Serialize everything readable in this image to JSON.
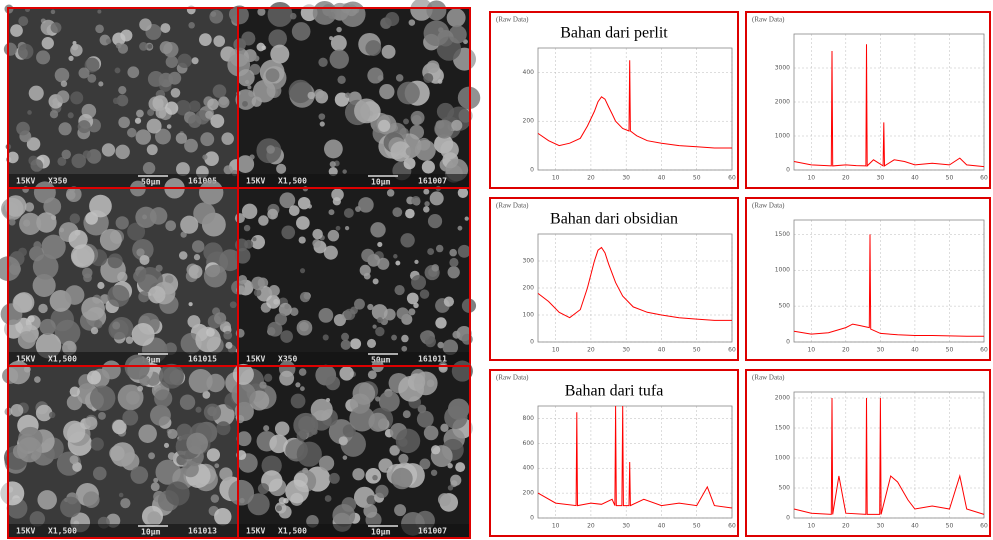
{
  "sem_images": [
    {
      "voltage": "15KV",
      "magnification": "X350",
      "scale": "50µm",
      "id": "161005"
    },
    {
      "voltage": "15KV",
      "magnification": "X1,500",
      "scale": "10µm",
      "id": "161007"
    },
    {
      "voltage": "15KV",
      "magnification": "X1,500",
      "scale": "10µm",
      "id": "161015"
    },
    {
      "voltage": "15KV",
      "magnification": "X350",
      "scale": "50µm",
      "id": "161011"
    },
    {
      "voltage": "15KV",
      "magnification": "X1,500",
      "scale": "10µm",
      "id": "161013"
    },
    {
      "voltage": "15KV",
      "magnification": "X1,500",
      "scale": "10µm",
      "id": "161007"
    }
  ],
  "chart_data": [
    {
      "type": "line",
      "title": "Bahan dari perlit",
      "annotation": "(Raw Data)",
      "color": "#ff0000",
      "grid": true,
      "x": [
        5,
        8,
        11,
        14,
        17,
        19,
        21,
        22,
        23,
        24,
        25,
        26,
        27,
        29,
        30.8,
        31,
        31.2,
        33,
        36,
        40,
        45,
        50,
        55,
        60
      ],
      "values": [
        150,
        120,
        100,
        110,
        130,
        180,
        240,
        280,
        300,
        290,
        260,
        230,
        200,
        170,
        160,
        450,
        160,
        140,
        120,
        110,
        100,
        95,
        90,
        90
      ],
      "xlim": [
        5,
        60
      ],
      "xticks": [
        10,
        20,
        30,
        40,
        50,
        60
      ],
      "ylim": [
        0,
        500
      ],
      "yticks": [
        0,
        200,
        400
      ]
    },
    {
      "type": "line",
      "annotation": "(Raw Data)",
      "color": "#ff0000",
      "grid": true,
      "x": [
        5,
        10,
        15.8,
        16,
        16.2,
        20,
        23,
        25.8,
        26,
        26.2,
        28,
        30.8,
        31,
        31.2,
        34,
        37,
        40,
        45,
        50,
        53,
        55,
        60
      ],
      "values": [
        250,
        150,
        120,
        3500,
        120,
        150,
        130,
        120,
        3700,
        120,
        300,
        120,
        1400,
        120,
        300,
        250,
        150,
        200,
        150,
        350,
        150,
        100
      ],
      "xlim": [
        5,
        60
      ],
      "xticks": [
        10,
        20,
        30,
        40,
        50,
        60
      ],
      "ylim": [
        0,
        4000
      ],
      "yticks": [
        0,
        1000,
        2000,
        3000
      ]
    },
    {
      "type": "line",
      "title": "Bahan dari obsidian",
      "annotation": "(Raw Data)",
      "color": "#ff0000",
      "grid": true,
      "x": [
        5,
        8,
        11,
        14,
        17,
        19,
        21,
        22,
        23,
        24,
        25,
        27,
        29,
        32,
        36,
        40,
        45,
        50,
        55,
        60
      ],
      "values": [
        180,
        150,
        110,
        90,
        120,
        200,
        300,
        340,
        350,
        330,
        290,
        220,
        170,
        130,
        110,
        100,
        90,
        85,
        80,
        80
      ],
      "xlim": [
        5,
        60
      ],
      "xticks": [
        10,
        20,
        30,
        40,
        50,
        60
      ],
      "ylim": [
        0,
        400
      ],
      "yticks": [
        0,
        100,
        200,
        300
      ]
    },
    {
      "type": "line",
      "annotation": "(Raw Data)",
      "color": "#ff0000",
      "grid": true,
      "x": [
        5,
        10,
        15,
        20,
        22,
        24,
        26.8,
        27,
        27.2,
        30,
        35,
        40,
        45,
        50,
        55,
        60
      ],
      "values": [
        150,
        110,
        130,
        200,
        250,
        230,
        200,
        1500,
        180,
        120,
        100,
        90,
        90,
        85,
        80,
        80
      ],
      "xlim": [
        5,
        60
      ],
      "xticks": [
        10,
        20,
        30,
        40,
        50,
        60
      ],
      "ylim": [
        0,
        1700
      ],
      "yticks": [
        0,
        500,
        1000,
        1500
      ]
    },
    {
      "type": "line",
      "title": "Bahan dari  tufa",
      "annotation": "(Raw Data)",
      "color": "#ff0000",
      "grid": true,
      "x": [
        5,
        10,
        15.8,
        16,
        16.2,
        20,
        23,
        26,
        26.8,
        27,
        27.2,
        28.8,
        29,
        29.2,
        30.8,
        31,
        31.2,
        35,
        40,
        45,
        50,
        53,
        55,
        60
      ],
      "values": [
        200,
        120,
        100,
        850,
        100,
        120,
        110,
        150,
        100,
        900,
        100,
        100,
        900,
        100,
        100,
        450,
        100,
        150,
        100,
        120,
        100,
        250,
        100,
        80
      ],
      "xlim": [
        5,
        60
      ],
      "xticks": [
        10,
        20,
        30,
        40,
        50,
        60
      ],
      "ylim": [
        0,
        900
      ],
      "yticks": [
        0,
        200,
        400,
        600,
        800
      ]
    },
    {
      "type": "line",
      "annotation": "(Raw Data)",
      "color": "#ff0000",
      "grid": true,
      "x": [
        5,
        10,
        15.8,
        16,
        16.2,
        18,
        20,
        25.8,
        26,
        26.2,
        29.8,
        30,
        30.2,
        33,
        35,
        38,
        40,
        45,
        50,
        53,
        55,
        60
      ],
      "values": [
        150,
        80,
        60,
        2000,
        60,
        700,
        80,
        60,
        2000,
        60,
        60,
        2000,
        60,
        700,
        600,
        300,
        150,
        200,
        150,
        700,
        150,
        60
      ],
      "xlim": [
        5,
        60
      ],
      "xticks": [
        10,
        20,
        30,
        40,
        50,
        60
      ],
      "ylim": [
        0,
        2100
      ],
      "yticks": [
        0,
        500,
        1000,
        1500,
        2000
      ]
    }
  ]
}
